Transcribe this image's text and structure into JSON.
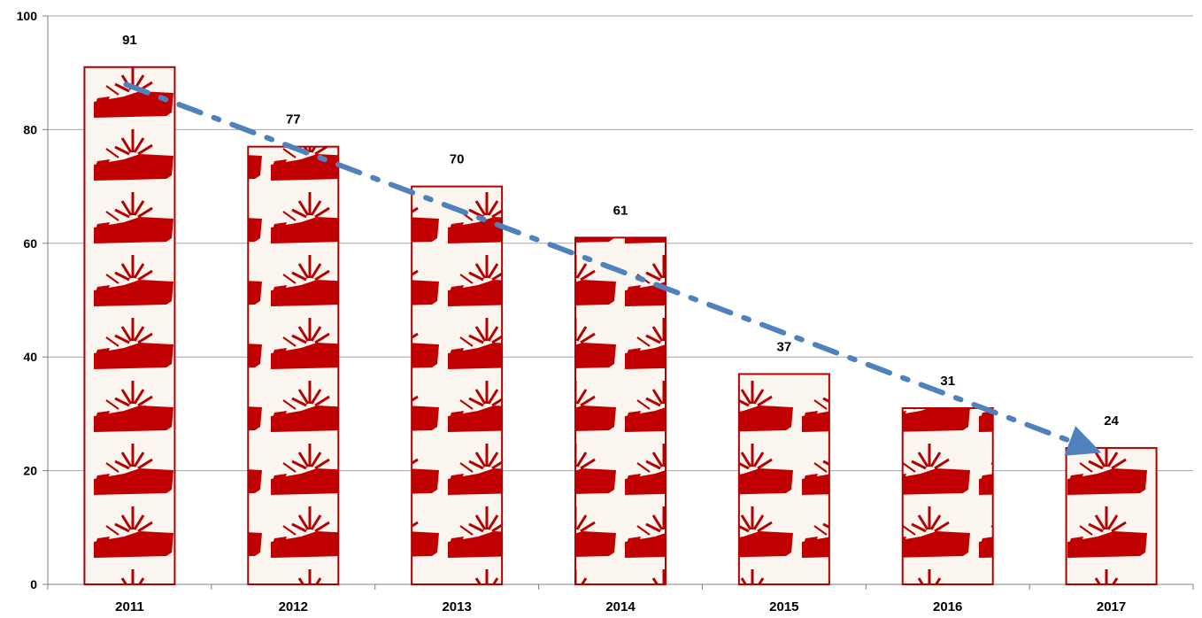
{
  "chart_data": {
    "type": "bar",
    "categories": [
      "2011",
      "2012",
      "2013",
      "2014",
      "2015",
      "2016",
      "2017"
    ],
    "values": [
      91,
      77,
      70,
      61,
      37,
      31,
      24
    ],
    "data_labels": [
      "91",
      "77",
      "70",
      "61",
      "37",
      "31",
      "24"
    ],
    "y_ticks": [
      "0",
      "20",
      "40",
      "60",
      "80",
      "100"
    ],
    "ylim": [
      0,
      100
    ],
    "grid": true,
    "trend_arrow": {
      "from": [
        "2011",
        91
      ],
      "to": [
        "2017",
        24
      ],
      "style": "dash-dot"
    },
    "bar_fill_motif": "ship-icon",
    "colors": {
      "bar": "#c00000",
      "bar_border": "#b00000",
      "trend": "#4f81bd",
      "grid": "#a6a6a6"
    }
  }
}
